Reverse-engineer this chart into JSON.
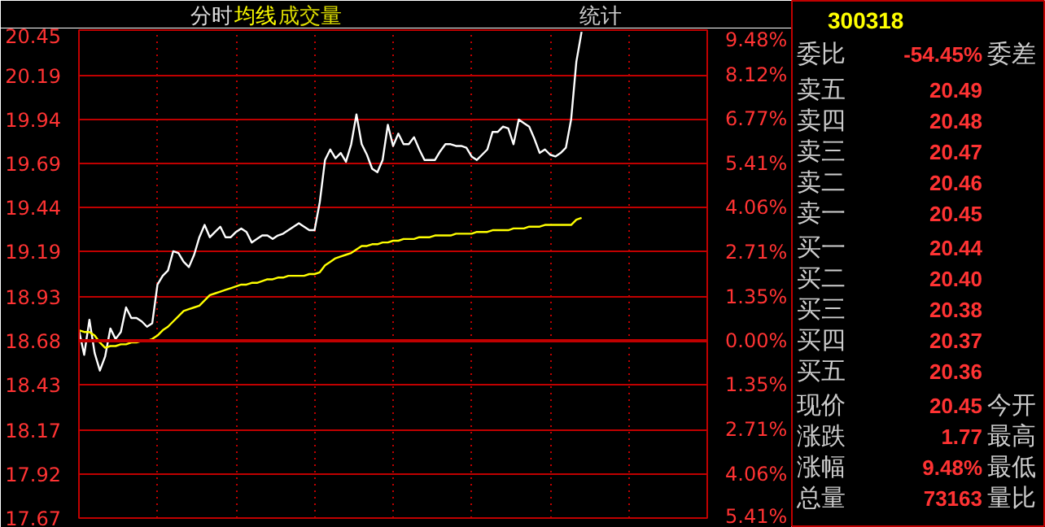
{
  "chart_data": {
    "type": "line",
    "title": "分时",
    "annotations": [
      "成交量",
      "统计",
      "300318",
      "委比",
      "-54.45%",
      "委差",
      "卖五",
      "20.49",
      "卖四",
      "20.48",
      "卖三",
      "20.47",
      "卖二",
      "20.46",
      "卖一",
      "20.45",
      "买一",
      "20.44",
      "买二",
      "20.40",
      "买三",
      "20.38",
      "买四",
      "20.37",
      "买五",
      "20.36",
      "现价",
      "20.45",
      "今开",
      "涨跌",
      "1.77",
      "最高",
      "涨幅",
      "9.48%",
      "最低",
      "总量",
      "73163",
      "量比"
    ],
    "categories": [
      null,
      null,
      null,
      null,
      null,
      null,
      null,
      null,
      null,
      null,
      null,
      null,
      null,
      null,
      null,
      null,
      null,
      null,
      null,
      null,
      null,
      null,
      null,
      null,
      null,
      null,
      null,
      null,
      null,
      null,
      null,
      null,
      null,
      null,
      null,
      null,
      null,
      null,
      null,
      null,
      null,
      null,
      null,
      null,
      null,
      null,
      null,
      null,
      null,
      null,
      null,
      null,
      null,
      null,
      null,
      null,
      null,
      null,
      null,
      null,
      null,
      null,
      null,
      null,
      null,
      null,
      null,
      null,
      null,
      null,
      null,
      null,
      null,
      null,
      null,
      null,
      null,
      null,
      null,
      null,
      null,
      null,
      null,
      null,
      null,
      null,
      null,
      null,
      null,
      null,
      null,
      null,
      null,
      null,
      null,
      null,
      null,
      null,
      null,
      null,
      null,
      null,
      null,
      null,
      null,
      null,
      null,
      null,
      null,
      null,
      null,
      null,
      null,
      null,
      null,
      null,
      null,
      null,
      null,
      null,
      null
    ],
    "ylim": [
      17.67,
      20.45
    ],
    "yticks": [
      17.67,
      17.92,
      18.17,
      18.43,
      18.68,
      18.93,
      19.19,
      19.44,
      19.69,
      19.94,
      20.19,
      20.45
    ],
    "y2lim": [
      -5.41,
      9.48
    ],
    "y2ticks": [
      {
        "value": -5.41,
        "label": "5.41%"
      },
      {
        "value": -4.06,
        "label": "4.06%"
      },
      {
        "value": -2.71,
        "label": "2.71%"
      },
      {
        "value": -1.35,
        "label": "1.35%"
      },
      {
        "value": 0,
        "label": "0.00%"
      },
      {
        "value": 1.35,
        "label": "1.35%"
      },
      {
        "value": 2.71,
        "label": "2.71%"
      },
      {
        "value": 4.06,
        "label": "4.06%"
      },
      {
        "value": 5.41,
        "label": "5.41%"
      },
      {
        "value": 6.77,
        "label": "6.77%"
      },
      {
        "value": 8.12,
        "label": "8.12%"
      },
      {
        "value": 9.48,
        "label": "9.48%"
      }
    ],
    "tick_labels": "y",
    "grid": true,
    "ref_lines": [
      {
        "axis": "y",
        "value": 18.68,
        "color": "#c00000"
      }
    ],
    "series": [
      {
        "color": "#ffffff",
        "values": [
          18.74,
          18.6,
          18.8,
          18.61,
          18.51,
          18.59,
          18.75,
          18.69,
          18.73,
          18.87,
          18.81,
          18.81,
          18.79,
          18.76,
          18.78,
          19.0,
          19.05,
          19.08,
          19.19,
          19.18,
          19.13,
          19.1,
          19.17,
          19.27,
          19.34,
          19.27,
          19.3,
          19.33,
          19.27,
          19.27,
          19.3,
          19.32,
          19.3,
          19.24,
          19.26,
          19.28,
          19.28,
          19.26,
          19.28,
          19.29,
          19.31,
          19.33,
          19.35,
          19.33,
          19.31,
          19.31,
          19.47,
          19.71,
          19.77,
          19.72,
          19.75,
          19.7,
          19.8,
          19.97,
          19.8,
          19.74,
          19.66,
          19.64,
          19.71,
          19.91,
          19.79,
          19.86,
          19.8,
          19.8,
          19.84,
          19.77,
          19.71,
          19.71,
          19.71,
          19.76,
          19.8,
          19.8,
          19.79,
          19.79,
          19.78,
          19.73,
          19.71,
          19.74,
          19.77,
          19.87,
          19.87,
          19.9,
          19.89,
          19.8,
          19.94,
          19.92,
          19.9,
          19.83,
          19.75,
          19.77,
          19.74,
          19.73,
          19.75,
          19.78,
          19.94,
          20.27,
          20.44,
          null,
          null,
          null,
          null,
          null,
          null,
          null,
          null,
          null,
          null,
          null,
          null,
          null,
          null,
          null,
          null,
          null,
          null,
          null,
          null,
          null,
          null,
          null,
          null
        ]
      },
      {
        "name": "均线",
        "color": "#ffff00",
        "values": [
          18.74,
          18.73,
          18.73,
          18.71,
          18.67,
          18.64,
          18.65,
          18.65,
          18.66,
          18.66,
          18.67,
          18.67,
          18.68,
          18.68,
          18.69,
          18.71,
          18.74,
          18.76,
          18.79,
          18.82,
          18.85,
          18.86,
          18.87,
          18.88,
          18.91,
          18.94,
          18.95,
          18.96,
          18.97,
          18.98,
          18.99,
          19.0,
          19.0,
          19.01,
          19.01,
          19.02,
          19.03,
          19.03,
          19.04,
          19.04,
          19.05,
          19.05,
          19.05,
          19.05,
          19.06,
          19.06,
          19.07,
          19.11,
          19.13,
          19.15,
          19.16,
          19.17,
          19.18,
          19.2,
          19.22,
          19.22,
          19.23,
          19.23,
          19.24,
          19.24,
          19.25,
          19.25,
          19.26,
          19.26,
          19.26,
          19.27,
          19.27,
          19.27,
          19.28,
          19.28,
          19.28,
          19.28,
          19.29,
          19.29,
          19.29,
          19.29,
          19.3,
          19.3,
          19.3,
          19.31,
          19.31,
          19.31,
          19.31,
          19.32,
          19.32,
          19.32,
          19.33,
          19.33,
          19.33,
          19.34,
          19.34,
          19.34,
          19.34,
          19.34,
          19.34,
          19.37,
          19.38,
          null,
          null,
          null,
          null,
          null,
          null,
          null,
          null,
          null,
          null,
          null,
          null,
          null,
          null,
          null,
          null,
          null,
          null,
          null,
          null,
          null,
          null,
          null,
          null
        ]
      }
    ]
  }
}
